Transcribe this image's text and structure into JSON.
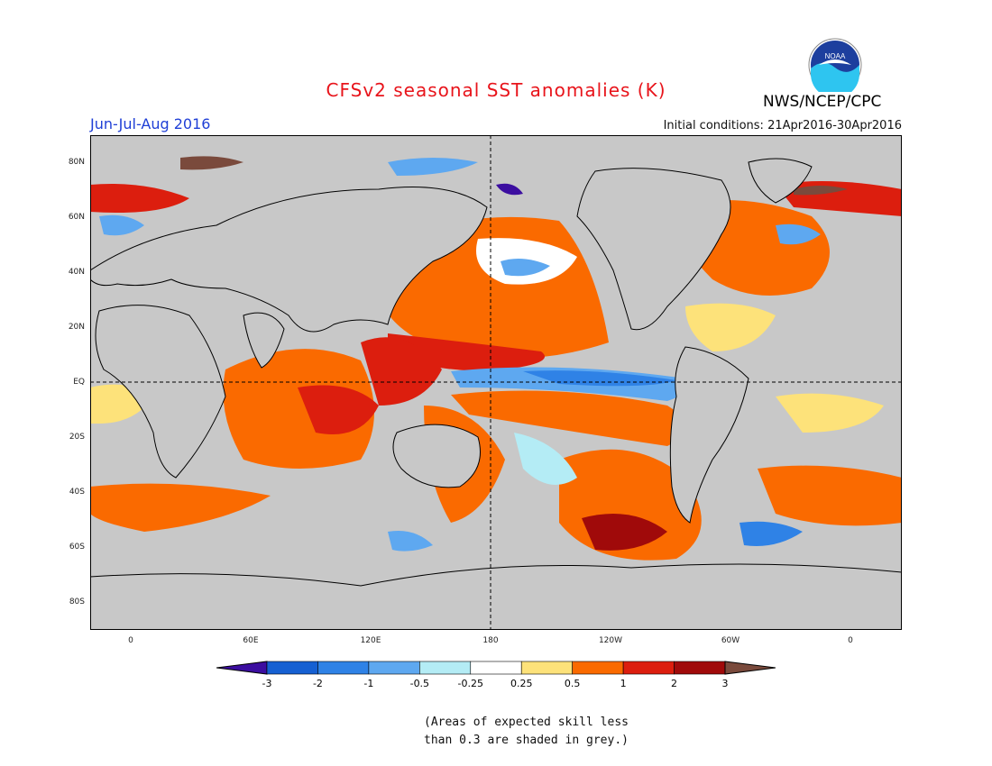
{
  "header": {
    "title": "CFSv2 seasonal SST anomalies (K)",
    "season": "Jun-Jul-Aug 2016",
    "initial_conditions": "Initial conditions: 21Apr2016-30Apr2016",
    "agency": "NWS/NCEP/CPC",
    "logo_text": "NOAA"
  },
  "map": {
    "lat_labels": [
      "80N",
      "60N",
      "40N",
      "20N",
      "EQ",
      "20S",
      "40S",
      "60S",
      "80S"
    ],
    "lon_labels": [
      "0",
      "60E",
      "120E",
      "180",
      "120W",
      "60W",
      "0"
    ],
    "central_meridian": "180"
  },
  "colorbar": {
    "levels": [
      "-3",
      "-2",
      "-1",
      "-0.5",
      "-0.25",
      "0.25",
      "0.5",
      "1",
      "2",
      "3"
    ],
    "colors": [
      "#3c0ea0",
      "#1660d2",
      "#2f82e6",
      "#5ea8f0",
      "#b4ecf5",
      "#ffffff",
      "#fde27a",
      "#fa6a00",
      "#dc1e0e",
      "#a00a0a",
      "#7a4a3c"
    ]
  },
  "note": {
    "line1": "(Areas of expected skill less",
    "line2": "than 0.3 are shaded in grey.)"
  },
  "colors": {
    "grey_mask": "#c8c8c8",
    "title": "#e8141b",
    "season": "#1f3fd6"
  }
}
